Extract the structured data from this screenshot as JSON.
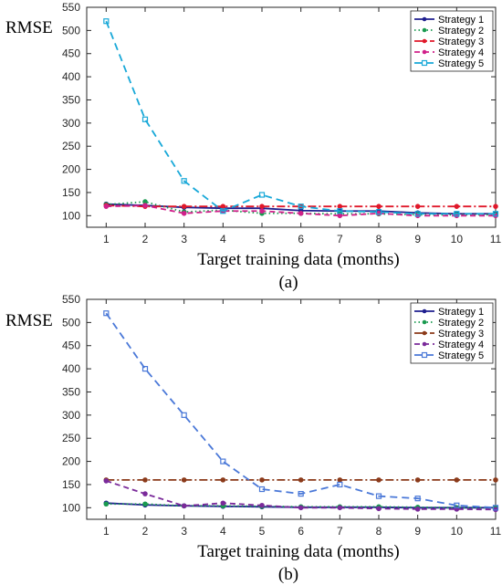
{
  "chart_data": [
    {
      "type": "line",
      "caption": "(a)",
      "xlabel": "Target training data (months)",
      "ylabel": "RMSE",
      "x": [
        1,
        2,
        3,
        4,
        5,
        6,
        7,
        8,
        9,
        10,
        11
      ],
      "xlim": [
        0.5,
        11
      ],
      "ylim": [
        75,
        550
      ],
      "yticks": [
        100,
        150,
        200,
        250,
        300,
        350,
        400,
        450,
        500,
        550
      ],
      "legend_position": "top-right",
      "series": [
        {
          "name": "Strategy 1",
          "color": "#1f1f8f",
          "dash": "",
          "marker": "circle",
          "values": [
            125,
            122,
            118,
            116,
            116,
            111,
            110,
            110,
            106,
            104,
            104
          ]
        },
        {
          "name": "Strategy 2",
          "color": "#1a9a50",
          "dash": "1.5 3",
          "marker": "circle",
          "values": [
            124,
            130,
            108,
            112,
            105,
            105,
            104,
            104,
            102,
            102,
            102
          ]
        },
        {
          "name": "Strategy 3",
          "color": "#e0182a",
          "dash": "9 3 2 3",
          "marker": "circle",
          "values": [
            122,
            120,
            120,
            120,
            120,
            120,
            120,
            120,
            120,
            120,
            120
          ]
        },
        {
          "name": "Strategy 4",
          "color": "#d0208a",
          "dash": "6 4",
          "marker": "circle",
          "values": [
            120,
            122,
            105,
            110,
            110,
            105,
            100,
            105,
            100,
            100,
            100
          ]
        },
        {
          "name": "Strategy 5",
          "color": "#18a8d8",
          "dash": "8 5",
          "marker": "square",
          "values": [
            520,
            308,
            175,
            110,
            145,
            120,
            110,
            108,
            104,
            104,
            104
          ]
        }
      ]
    },
    {
      "type": "line",
      "caption": "(b)",
      "xlabel": "Target training data (months)",
      "ylabel": "RMSE",
      "x": [
        1,
        2,
        3,
        4,
        5,
        6,
        7,
        8,
        9,
        10,
        11
      ],
      "xlim": [
        0.5,
        11
      ],
      "ylim": [
        75,
        550
      ],
      "yticks": [
        100,
        150,
        200,
        250,
        300,
        350,
        400,
        450,
        500,
        550
      ],
      "legend_position": "top-right",
      "series": [
        {
          "name": "Strategy 1",
          "color": "#1f1f8f",
          "dash": "",
          "marker": "circle",
          "values": [
            110,
            106,
            104,
            103,
            102,
            101,
            101,
            101,
            100,
            100,
            100
          ]
        },
        {
          "name": "Strategy 2",
          "color": "#1a9a50",
          "dash": "1.5 3",
          "marker": "circle",
          "values": [
            108,
            108,
            104,
            104,
            103,
            102,
            102,
            102,
            101,
            100,
            100
          ]
        },
        {
          "name": "Strategy 3",
          "color": "#8b3a1a",
          "dash": "9 3 2 3",
          "marker": "circle",
          "values": [
            160,
            160,
            160,
            160,
            160,
            160,
            160,
            160,
            160,
            160,
            160
          ]
        },
        {
          "name": "Strategy 4",
          "color": "#7a2a9a",
          "dash": "6 4",
          "marker": "circle",
          "values": [
            158,
            130,
            104,
            110,
            105,
            100,
            100,
            98,
            97,
            97,
            96
          ]
        },
        {
          "name": "Strategy 5",
          "color": "#4a78d8",
          "dash": "8 5",
          "marker": "square",
          "values": [
            520,
            400,
            300,
            200,
            140,
            130,
            150,
            125,
            120,
            105,
            100
          ]
        }
      ]
    }
  ]
}
